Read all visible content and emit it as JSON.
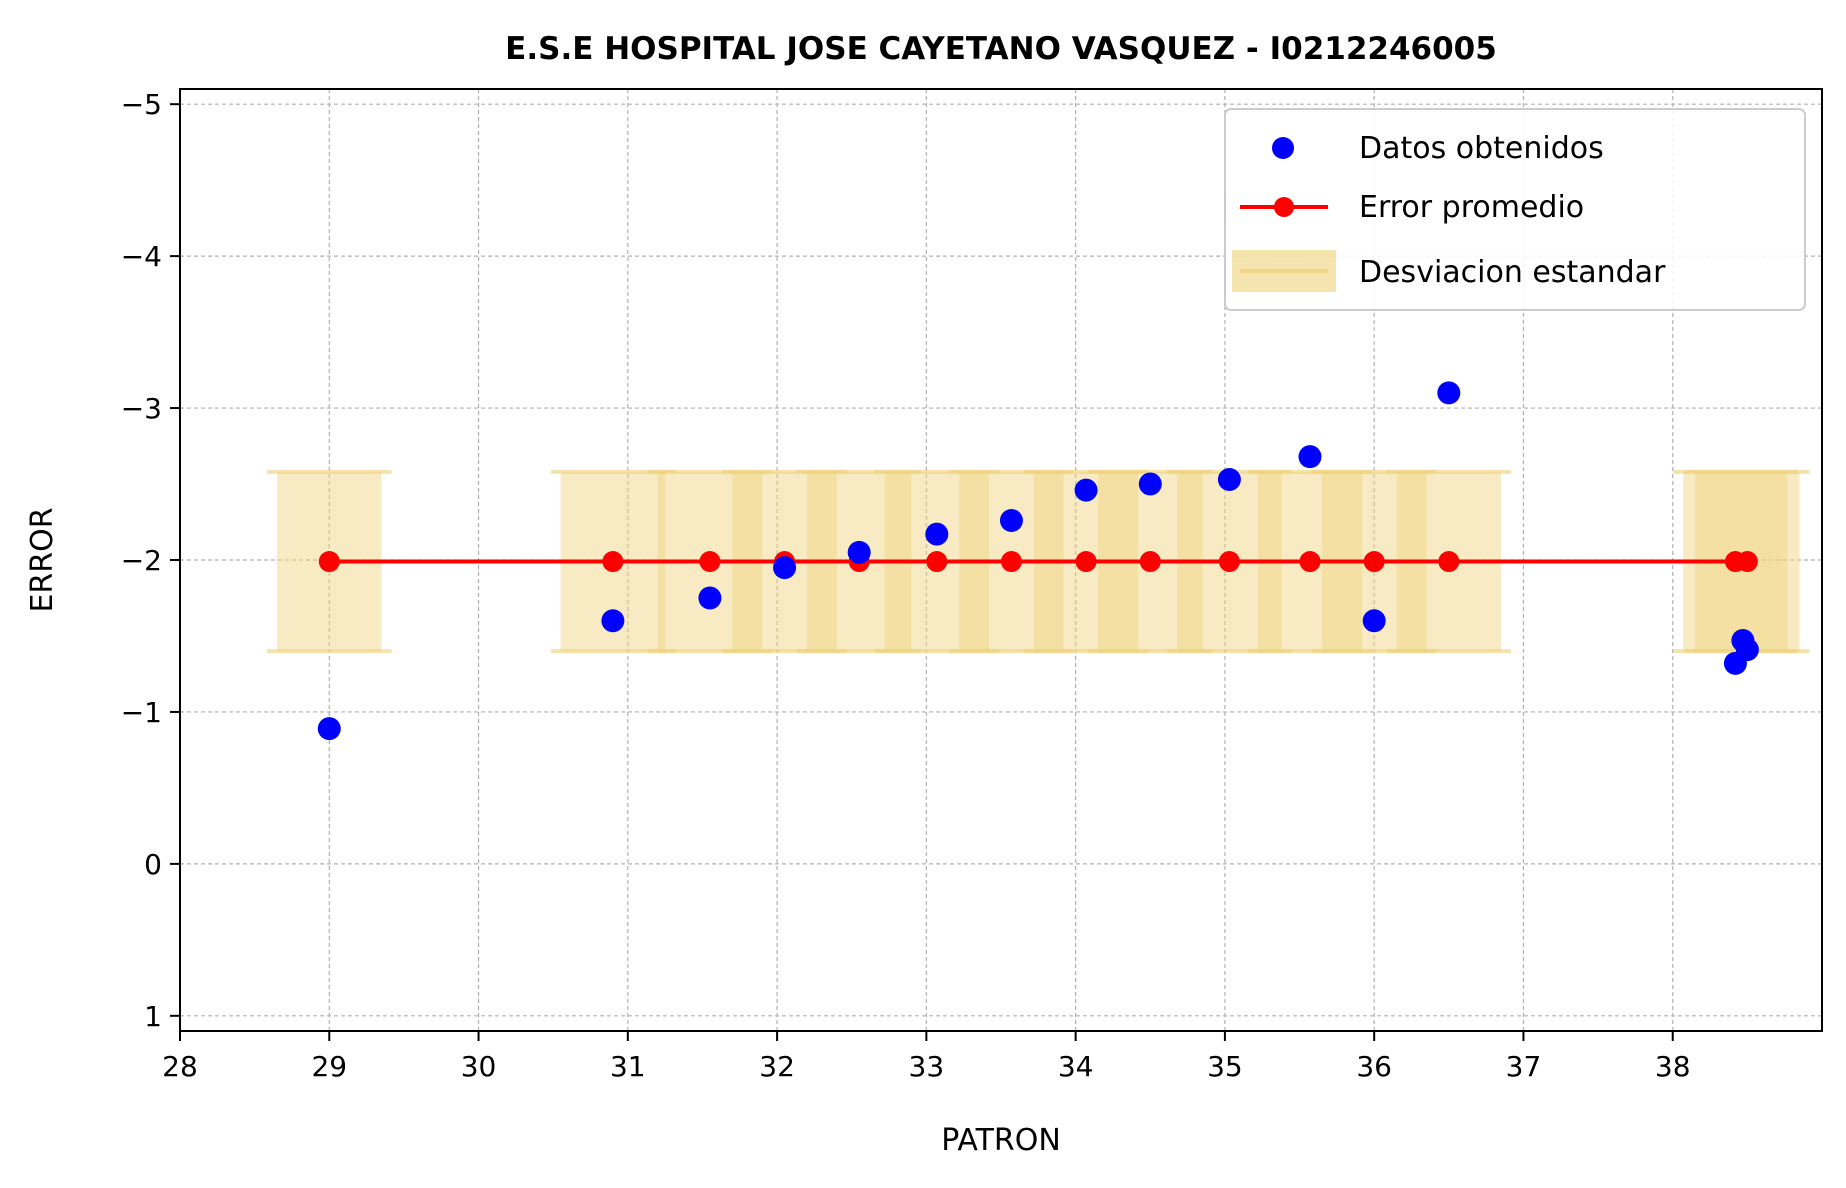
{
  "chart_data": {
    "type": "scatter",
    "title": "E.S.E HOSPITAL JOSE CAYETANO VASQUEZ - I0212246005",
    "xlabel": "PATRON",
    "ylabel": "ERROR",
    "xlim": [
      28,
      39
    ],
    "ylim": [
      1.1,
      -5.1
    ],
    "y_inverted": true,
    "x_ticks": [
      28,
      29,
      30,
      31,
      32,
      33,
      34,
      35,
      36,
      37,
      38
    ],
    "y_ticks": [
      1,
      0,
      -1,
      -2,
      -3,
      -4,
      -5
    ],
    "y_tick_labels": [
      "1",
      "0",
      "−1",
      "−2",
      "−3",
      "−4",
      "−5"
    ],
    "grid": true,
    "legend_position": "top-right",
    "colors": {
      "data_points": "#0000ff",
      "mean_line": "#ff0000",
      "std_band": "#f0d27a"
    },
    "series": [
      {
        "name": "Datos obtenidos",
        "kind": "scatter",
        "x": [
          29.0,
          30.9,
          31.55,
          32.05,
          32.55,
          33.07,
          33.57,
          34.07,
          34.5,
          35.03,
          35.57,
          36.0,
          36.5,
          38.42,
          38.5,
          38.47
        ],
        "y": [
          -0.89,
          -1.6,
          -1.75,
          -1.95,
          -2.05,
          -2.17,
          -2.26,
          -2.46,
          -2.5,
          -2.53,
          -2.68,
          -1.6,
          -3.1,
          -1.32,
          -1.41,
          -1.47
        ]
      },
      {
        "name": "Error promedio",
        "kind": "line",
        "x": [
          29.0,
          30.9,
          31.55,
          32.05,
          32.55,
          33.07,
          33.57,
          34.07,
          34.5,
          35.03,
          35.57,
          36.0,
          36.5,
          38.42,
          38.5
        ],
        "y": [
          -1.99,
          -1.99,
          -1.99,
          -1.99,
          -1.99,
          -1.99,
          -1.99,
          -1.99,
          -1.99,
          -1.99,
          -1.99,
          -1.99,
          -1.99,
          -1.99,
          -1.99
        ]
      },
      {
        "name": "Desviacion estandar",
        "kind": "error_band",
        "x": [
          29.0,
          30.9,
          31.55,
          32.05,
          32.55,
          33.07,
          33.57,
          34.07,
          34.5,
          35.03,
          35.57,
          36.0,
          36.5,
          38.42,
          38.5
        ],
        "center": -1.99,
        "std": 0.59
      }
    ]
  }
}
